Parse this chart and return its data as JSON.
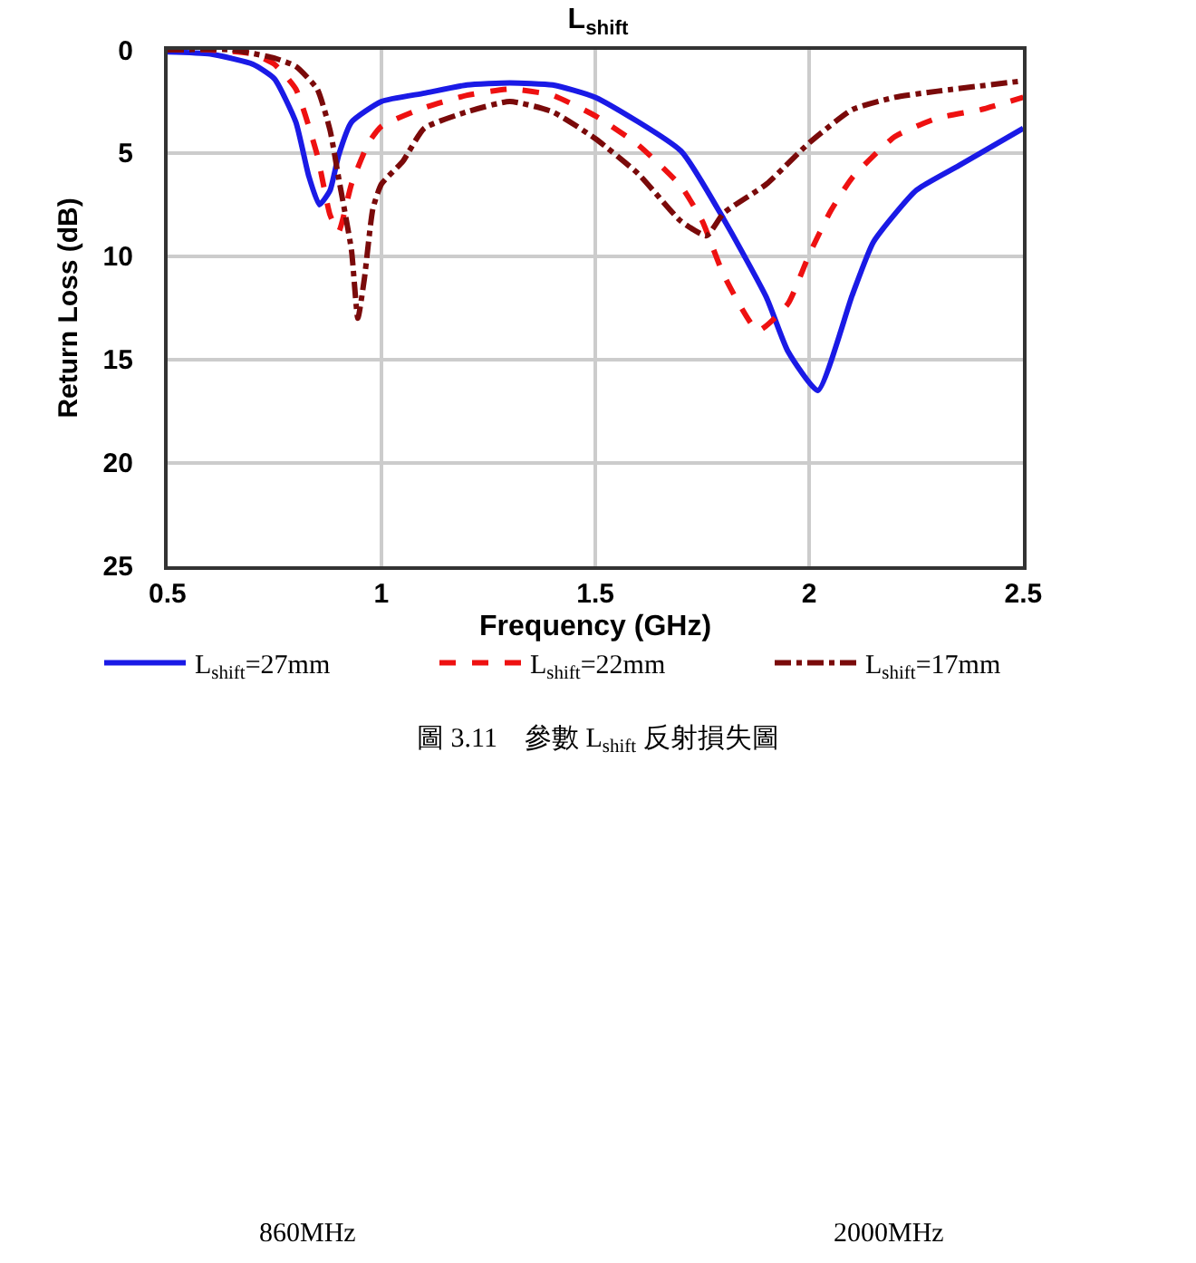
{
  "chart_data": {
    "type": "line",
    "title": "L$_{shift}$",
    "xlabel": "Frequency (GHz)",
    "ylabel": "Return Loss (dB)",
    "xlim": [
      0.5,
      2.5
    ],
    "xticks": [
      0.5,
      1,
      1.5,
      2,
      2.5
    ],
    "ylim": [
      25,
      0
    ],
    "yticks": [
      0,
      5,
      10,
      15,
      20,
      25
    ],
    "grid": true,
    "legend": "bottom",
    "marker": "none",
    "series": [
      {
        "name": "L$_{shift}$=27mm",
        "color": "#1a1ae6",
        "line_style": "solid",
        "x": [
          0.5,
          0.6,
          0.7,
          0.75,
          0.8,
          0.83,
          0.855,
          0.88,
          0.9,
          0.93,
          1.0,
          1.1,
          1.2,
          1.3,
          1.4,
          1.5,
          1.7,
          1.8,
          1.9,
          1.95,
          2.02,
          2.1,
          2.15,
          2.25,
          2.35,
          2.5
        ],
        "values": [
          0.1,
          0.2,
          0.7,
          1.4,
          3.5,
          6.1,
          7.5,
          6.8,
          5.1,
          3.5,
          2.5,
          2.1,
          1.7,
          1.6,
          1.7,
          2.3,
          4.9,
          8.2,
          12.0,
          14.6,
          16.5,
          11.9,
          9.3,
          6.8,
          5.6,
          3.8
        ]
      },
      {
        "name": "L$_{shift}$=22mm",
        "color": "#ee1111",
        "line_style": "dashed",
        "x": [
          0.5,
          0.6,
          0.7,
          0.75,
          0.8,
          0.85,
          0.88,
          0.9,
          0.93,
          0.97,
          1.0,
          1.1,
          1.2,
          1.3,
          1.4,
          1.5,
          1.6,
          1.7,
          1.75,
          1.8,
          1.88,
          1.95,
          2.0,
          2.05,
          2.1,
          2.2,
          2.3,
          2.4,
          2.5
        ],
        "values": [
          0.0,
          0.0,
          0.2,
          0.7,
          1.9,
          5.1,
          8.0,
          8.8,
          6.5,
          4.5,
          3.7,
          2.8,
          2.2,
          1.9,
          2.2,
          3.2,
          4.6,
          6.6,
          8.3,
          10.9,
          13.6,
          12.3,
          9.9,
          7.8,
          6.2,
          4.2,
          3.3,
          2.9,
          2.3
        ]
      },
      {
        "name": "L$_{shift}$=17mm",
        "color": "#7a0a0a",
        "line_style": "dashdot",
        "x": [
          0.5,
          0.65,
          0.75,
          0.8,
          0.85,
          0.88,
          0.9,
          0.93,
          0.945,
          0.96,
          0.98,
          1.0,
          1.05,
          1.1,
          1.2,
          1.3,
          1.4,
          1.5,
          1.6,
          1.7,
          1.76,
          1.8,
          1.9,
          2.0,
          2.1,
          2.2,
          2.3,
          2.5
        ],
        "values": [
          0.0,
          0.0,
          0.4,
          0.8,
          1.9,
          3.9,
          6.2,
          9.7,
          13.0,
          11.1,
          7.7,
          6.5,
          5.4,
          3.8,
          3.0,
          2.5,
          3.0,
          4.3,
          6.0,
          8.3,
          9.0,
          7.9,
          6.5,
          4.5,
          2.9,
          2.3,
          2.0,
          1.5
        ]
      }
    ],
    "annotations": [
      "圖 3.11    參數 L$_{shift}$ 反射損失圖",
      "860MHz",
      "2000MHz"
    ]
  }
}
